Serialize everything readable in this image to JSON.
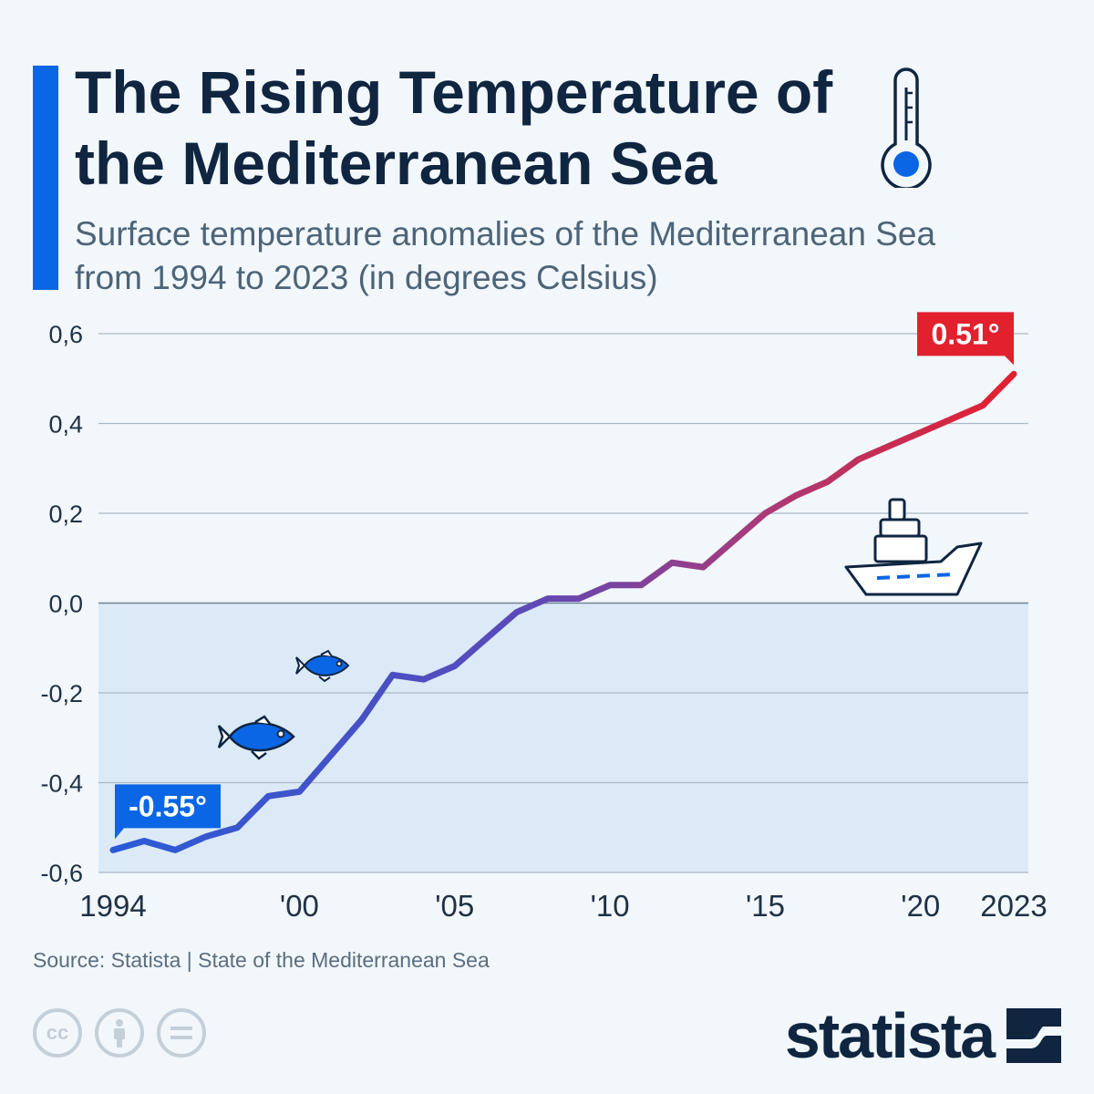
{
  "header": {
    "title": "The Rising Temperature of the Mediterranean Sea",
    "subtitle": "Surface temperature anomalies of the Mediterranean Sea from 1994 to 2023 (in degrees Celsius)"
  },
  "chart_data": {
    "type": "line",
    "title": "The Rising Temperature of the Mediterranean Sea",
    "subtitle": "Surface temperature anomalies of the Mediterranean Sea from 1994 to 2023 (in degrees Celsius)",
    "xlabel": "",
    "ylabel": "",
    "x": [
      1994,
      1995,
      1996,
      1997,
      1998,
      1999,
      2000,
      2001,
      2002,
      2003,
      2004,
      2005,
      2006,
      2007,
      2008,
      2009,
      2010,
      2011,
      2012,
      2013,
      2014,
      2015,
      2016,
      2017,
      2018,
      2019,
      2020,
      2021,
      2022,
      2023
    ],
    "series": [
      {
        "values": [
          -0.55,
          -0.53,
          -0.55,
          -0.52,
          -0.5,
          -0.43,
          -0.42,
          -0.34,
          -0.26,
          -0.16,
          -0.17,
          -0.14,
          -0.08,
          -0.02,
          0.01,
          0.01,
          0.04,
          0.04,
          0.09,
          0.08,
          0.14,
          0.2,
          0.24,
          0.27,
          0.32,
          0.35,
          0.38,
          0.41,
          0.44,
          0.51
        ]
      }
    ],
    "ylim": [
      -0.6,
      0.6
    ],
    "yticks": [
      "0,6",
      "0,4",
      "0,2",
      "0,0",
      "-0,2",
      "-0,4",
      "-0,6"
    ],
    "ytick_values": [
      0.6,
      0.4,
      0.2,
      0.0,
      -0.2,
      -0.4,
      -0.6
    ],
    "xticks": [
      "1994",
      "'00",
      "'05",
      "'10",
      "'15",
      "'20",
      "2023"
    ],
    "xtick_values": [
      1994,
      2000,
      2005,
      2010,
      2015,
      2020,
      2023
    ],
    "annotations": {
      "start": "-0.55°",
      "end": "0.51°"
    },
    "grid": true,
    "line_colors": {
      "start": "#2a5bd7",
      "end": "#e3202e"
    },
    "below_zero_fill": "#dceaf8"
  },
  "footer": {
    "source": "Source: Statista | State of the Mediterranean Sea",
    "logo": "statista"
  },
  "icons": [
    "thermometer-icon",
    "fish-icon",
    "ship-icon",
    "cc-icon",
    "attribution-icon",
    "no-derivatives-icon",
    "statista-logo-icon"
  ],
  "colors": {
    "accent": "#0a66e4",
    "title": "#0f2540",
    "subtitle": "#4d6478"
  }
}
